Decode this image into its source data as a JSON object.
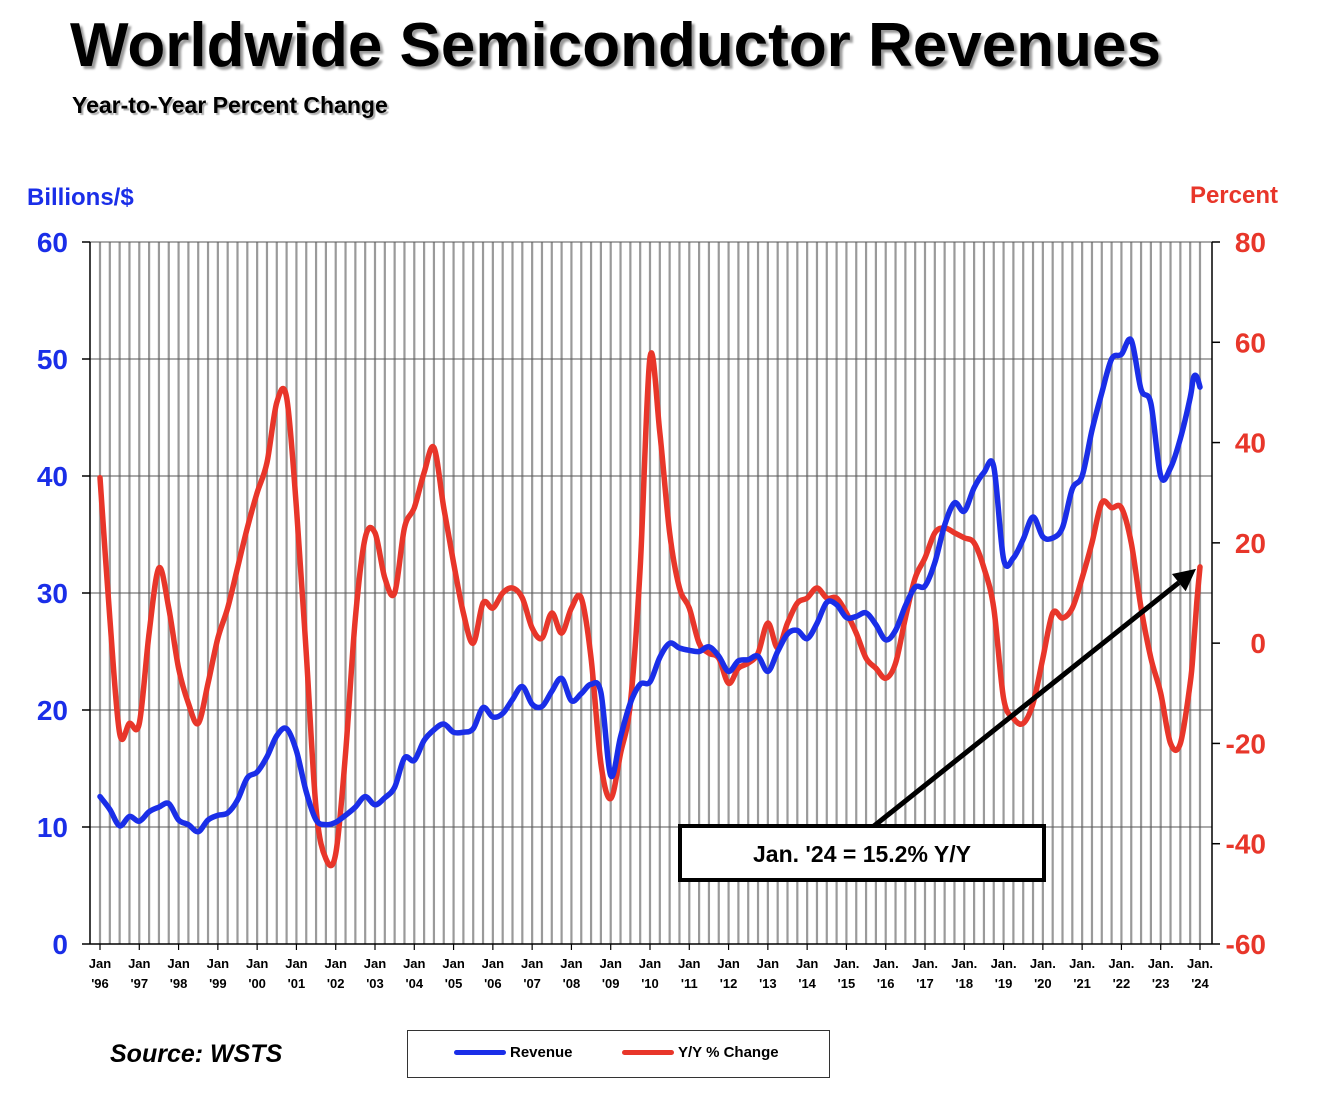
{
  "title": "Worldwide Semiconductor Revenues",
  "subtitle": "Year-to-Year Percent Change",
  "source": "Source: WSTS",
  "colors": {
    "revenue": "#1a2ee8",
    "yoy": "#e8362a",
    "grid": "#9a9a9a",
    "axis": "#000000"
  },
  "legend": {
    "revenue": "Revenue",
    "yoy": "Y/Y % Change"
  },
  "chart_data": {
    "type": "line",
    "ylabel_left": "Billions/$",
    "ylabel_right": "Percent",
    "ylim_left": [
      0,
      60
    ],
    "ylim_right": [
      -60,
      80
    ],
    "yticks_left": [
      0,
      10,
      20,
      30,
      40,
      50,
      60
    ],
    "yticks_right": [
      -60,
      -40,
      -20,
      0,
      20,
      40,
      60,
      80
    ],
    "grid": "vertical monthly",
    "legend_position": "bottom",
    "x_range": [
      "1996-01",
      "2024-01"
    ],
    "x_tick_labels": [
      [
        "Jan",
        "'96"
      ],
      [
        "Jan",
        "'97"
      ],
      [
        "Jan",
        "'98"
      ],
      [
        "Jan",
        "'99"
      ],
      [
        "Jan",
        "'00"
      ],
      [
        "Jan",
        "'01"
      ],
      [
        "Jan",
        "'02"
      ],
      [
        "Jan",
        "'03"
      ],
      [
        "Jan",
        "'04"
      ],
      [
        "Jan",
        "'05"
      ],
      [
        "Jan",
        "'06"
      ],
      [
        "Jan",
        "'07"
      ],
      [
        "Jan",
        "'08"
      ],
      [
        "Jan",
        "'09"
      ],
      [
        "Jan",
        "'10"
      ],
      [
        "Jan",
        "'11"
      ],
      [
        "Jan",
        "'12"
      ],
      [
        "Jan",
        "'13"
      ],
      [
        "Jan",
        "'14"
      ],
      [
        "Jan.",
        "'15"
      ],
      [
        "Jan.",
        "'16"
      ],
      [
        "Jan.",
        "'17"
      ],
      [
        "Jan.",
        "'18"
      ],
      [
        "Jan.",
        "'19"
      ],
      [
        "Jan.",
        "'20"
      ],
      [
        "Jan.",
        "'21"
      ],
      [
        "Jan.",
        "'22"
      ],
      [
        "Jan.",
        "'23"
      ],
      [
        "Jan.",
        "'24"
      ]
    ],
    "annotation": {
      "text": "Jan. '24 = 15.2% Y/Y",
      "points_to": [
        "2024-01",
        15.2
      ]
    },
    "series": [
      {
        "name": "Revenue",
        "axis": "left",
        "points": [
          [
            "1996-01",
            12.6
          ],
          [
            "1996-04",
            11.5
          ],
          [
            "1996-07",
            10.1
          ],
          [
            "1996-10",
            10.9
          ],
          [
            "1997-01",
            10.5
          ],
          [
            "1997-04",
            11.3
          ],
          [
            "1997-07",
            11.7
          ],
          [
            "1997-10",
            12.0
          ],
          [
            "1998-01",
            10.6
          ],
          [
            "1998-04",
            10.2
          ],
          [
            "1998-07",
            9.6
          ],
          [
            "1998-10",
            10.6
          ],
          [
            "1999-01",
            11.0
          ],
          [
            "1999-04",
            11.2
          ],
          [
            "1999-07",
            12.3
          ],
          [
            "1999-10",
            14.2
          ],
          [
            "2000-01",
            14.7
          ],
          [
            "2000-04",
            16.0
          ],
          [
            "2000-07",
            17.8
          ],
          [
            "2000-10",
            18.4
          ],
          [
            "2001-01",
            16.5
          ],
          [
            "2001-04",
            13.0
          ],
          [
            "2001-07",
            10.6
          ],
          [
            "2001-10",
            10.2
          ],
          [
            "2002-01",
            10.4
          ],
          [
            "2002-04",
            11.0
          ],
          [
            "2002-07",
            11.7
          ],
          [
            "2002-10",
            12.6
          ],
          [
            "2003-01",
            11.9
          ],
          [
            "2003-04",
            12.5
          ],
          [
            "2003-07",
            13.4
          ],
          [
            "2003-10",
            15.9
          ],
          [
            "2004-01",
            15.7
          ],
          [
            "2004-04",
            17.4
          ],
          [
            "2004-07",
            18.3
          ],
          [
            "2004-10",
            18.8
          ],
          [
            "2005-01",
            18.1
          ],
          [
            "2005-04",
            18.1
          ],
          [
            "2005-07",
            18.4
          ],
          [
            "2005-10",
            20.2
          ],
          [
            "2006-01",
            19.4
          ],
          [
            "2006-04",
            19.7
          ],
          [
            "2006-07",
            20.9
          ],
          [
            "2006-10",
            22.0
          ],
          [
            "2007-01",
            20.5
          ],
          [
            "2007-04",
            20.3
          ],
          [
            "2007-07",
            21.6
          ],
          [
            "2007-10",
            22.7
          ],
          [
            "2008-01",
            20.8
          ],
          [
            "2008-04",
            21.4
          ],
          [
            "2008-07",
            22.2
          ],
          [
            "2008-10",
            21.5
          ],
          [
            "2009-01",
            14.4
          ],
          [
            "2009-04",
            17.7
          ],
          [
            "2009-07",
            20.6
          ],
          [
            "2009-10",
            22.2
          ],
          [
            "2010-01",
            22.4
          ],
          [
            "2010-04",
            24.5
          ],
          [
            "2010-07",
            25.7
          ],
          [
            "2010-10",
            25.3
          ],
          [
            "2011-01",
            25.1
          ],
          [
            "2011-04",
            25.0
          ],
          [
            "2011-07",
            25.4
          ],
          [
            "2011-10",
            24.6
          ],
          [
            "2012-01",
            23.3
          ],
          [
            "2012-04",
            24.2
          ],
          [
            "2012-07",
            24.3
          ],
          [
            "2012-10",
            24.6
          ],
          [
            "2013-01",
            23.3
          ],
          [
            "2013-04",
            25.0
          ],
          [
            "2013-07",
            26.5
          ],
          [
            "2013-10",
            26.8
          ],
          [
            "2014-01",
            26.1
          ],
          [
            "2014-04",
            27.4
          ],
          [
            "2014-07",
            29.2
          ],
          [
            "2014-10",
            29.0
          ],
          [
            "2015-01",
            27.9
          ],
          [
            "2015-04",
            28.0
          ],
          [
            "2015-07",
            28.3
          ],
          [
            "2015-10",
            27.3
          ],
          [
            "2016-01",
            26.0
          ],
          [
            "2016-04",
            26.8
          ],
          [
            "2016-07",
            28.9
          ],
          [
            "2016-10",
            30.5
          ],
          [
            "2017-01",
            30.6
          ],
          [
            "2017-04",
            32.6
          ],
          [
            "2017-07",
            35.8
          ],
          [
            "2017-10",
            37.7
          ],
          [
            "2018-01",
            37.0
          ],
          [
            "2018-04",
            39.0
          ],
          [
            "2018-07",
            40.3
          ],
          [
            "2018-10",
            40.8
          ],
          [
            "2019-01",
            32.9
          ],
          [
            "2019-04",
            33.0
          ],
          [
            "2019-07",
            34.6
          ],
          [
            "2019-10",
            36.5
          ],
          [
            "2020-01",
            34.8
          ],
          [
            "2020-04",
            34.7
          ],
          [
            "2020-07",
            35.6
          ],
          [
            "2020-10",
            38.9
          ],
          [
            "2021-01",
            40.0
          ],
          [
            "2021-04",
            43.9
          ],
          [
            "2021-07",
            47.1
          ],
          [
            "2021-10",
            50.0
          ],
          [
            "2022-01",
            50.4
          ],
          [
            "2022-04",
            51.6
          ],
          [
            "2022-07",
            47.4
          ],
          [
            "2022-10",
            46.2
          ],
          [
            "2023-01",
            40.0
          ],
          [
            "2023-04",
            40.7
          ],
          [
            "2023-07",
            43.2
          ],
          [
            "2023-10",
            46.7
          ],
          [
            "2023-11",
            48.4
          ],
          [
            "2023-12",
            48.5
          ],
          [
            "2024-01",
            47.6
          ]
        ]
      },
      {
        "name": "Y/Y % Change",
        "axis": "right",
        "points": [
          [
            "1996-01",
            33.0
          ],
          [
            "1996-04",
            5.0
          ],
          [
            "1996-07",
            -18.0
          ],
          [
            "1996-10",
            -16.0
          ],
          [
            "1997-01",
            -16.0
          ],
          [
            "1997-04",
            2.0
          ],
          [
            "1997-07",
            15.0
          ],
          [
            "1997-10",
            7.0
          ],
          [
            "1998-01",
            -5.0
          ],
          [
            "1998-04",
            -12.0
          ],
          [
            "1998-07",
            -16.0
          ],
          [
            "1998-10",
            -8.0
          ],
          [
            "1999-01",
            1.0
          ],
          [
            "1999-04",
            7.0
          ],
          [
            "1999-07",
            15.0
          ],
          [
            "1999-10",
            23.0
          ],
          [
            "2000-01",
            30.0
          ],
          [
            "2000-04",
            36.0
          ],
          [
            "2000-07",
            48.0
          ],
          [
            "2000-10",
            49.0
          ],
          [
            "2001-01",
            27.0
          ],
          [
            "2001-04",
            -2.0
          ],
          [
            "2001-07",
            -33.0
          ],
          [
            "2001-10",
            -43.0
          ],
          [
            "2002-01",
            -42.0
          ],
          [
            "2002-04",
            -22.0
          ],
          [
            "2002-07",
            5.0
          ],
          [
            "2002-10",
            21.0
          ],
          [
            "2003-01",
            22.0
          ],
          [
            "2003-04",
            13.0
          ],
          [
            "2003-07",
            10.0
          ],
          [
            "2003-10",
            23.0
          ],
          [
            "2004-01",
            27.0
          ],
          [
            "2004-04",
            34.0
          ],
          [
            "2004-07",
            39.0
          ],
          [
            "2004-10",
            27.0
          ],
          [
            "2005-01",
            16.0
          ],
          [
            "2005-04",
            6.0
          ],
          [
            "2005-07",
            0.0
          ],
          [
            "2005-10",
            8.0
          ],
          [
            "2006-01",
            7.0
          ],
          [
            "2006-04",
            10.0
          ],
          [
            "2006-07",
            11.0
          ],
          [
            "2006-10",
            9.0
          ],
          [
            "2007-01",
            3.0
          ],
          [
            "2007-04",
            1.0
          ],
          [
            "2007-07",
            6.0
          ],
          [
            "2007-10",
            2.0
          ],
          [
            "2008-01",
            7.0
          ],
          [
            "2008-04",
            9.0
          ],
          [
            "2008-07",
            -3.0
          ],
          [
            "2008-10",
            -24.0
          ],
          [
            "2009-01",
            -31.0
          ],
          [
            "2009-04",
            -22.0
          ],
          [
            "2009-07",
            -12.0
          ],
          [
            "2009-10",
            15.0
          ],
          [
            "2010-01",
            57.0
          ],
          [
            "2010-04",
            42.0
          ],
          [
            "2010-07",
            22.0
          ],
          [
            "2010-10",
            11.0
          ],
          [
            "2011-01",
            7.0
          ],
          [
            "2011-04",
            0.0
          ],
          [
            "2011-07",
            -2.0
          ],
          [
            "2011-10",
            -3.0
          ],
          [
            "2012-01",
            -8.0
          ],
          [
            "2012-04",
            -5.0
          ],
          [
            "2012-07",
            -4.0
          ],
          [
            "2012-10",
            -2.0
          ],
          [
            "2013-01",
            4.0
          ],
          [
            "2013-04",
            -1.0
          ],
          [
            "2013-07",
            4.0
          ],
          [
            "2013-10",
            8.0
          ],
          [
            "2014-01",
            9.0
          ],
          [
            "2014-04",
            11.0
          ],
          [
            "2014-07",
            9.0
          ],
          [
            "2014-10",
            9.0
          ],
          [
            "2015-01",
            6.0
          ],
          [
            "2015-04",
            2.0
          ],
          [
            "2015-07",
            -3.0
          ],
          [
            "2015-10",
            -5.0
          ],
          [
            "2016-01",
            -7.0
          ],
          [
            "2016-04",
            -4.0
          ],
          [
            "2016-07",
            5.0
          ],
          [
            "2016-10",
            13.0
          ],
          [
            "2017-01",
            17.0
          ],
          [
            "2017-04",
            22.0
          ],
          [
            "2017-07",
            23.0
          ],
          [
            "2017-10",
            22.0
          ],
          [
            "2018-01",
            21.0
          ],
          [
            "2018-04",
            20.0
          ],
          [
            "2018-07",
            15.0
          ],
          [
            "2018-10",
            7.0
          ],
          [
            "2019-01",
            -11.0
          ],
          [
            "2019-04",
            -15.0
          ],
          [
            "2019-07",
            -16.0
          ],
          [
            "2019-10",
            -12.0
          ],
          [
            "2020-01",
            -3.0
          ],
          [
            "2020-04",
            6.0
          ],
          [
            "2020-07",
            5.0
          ],
          [
            "2020-10",
            7.0
          ],
          [
            "2021-01",
            13.0
          ],
          [
            "2021-04",
            20.0
          ],
          [
            "2021-07",
            28.0
          ],
          [
            "2021-10",
            27.0
          ],
          [
            "2022-01",
            27.0
          ],
          [
            "2022-04",
            20.0
          ],
          [
            "2022-07",
            7.0
          ],
          [
            "2022-10",
            -3.0
          ],
          [
            "2023-01",
            -10.0
          ],
          [
            "2023-04",
            -20.0
          ],
          [
            "2023-07",
            -20.0
          ],
          [
            "2023-10",
            -8.0
          ],
          [
            "2023-11",
            -1.0
          ],
          [
            "2023-12",
            8.0
          ],
          [
            "2024-01",
            15.2
          ]
        ]
      }
    ]
  }
}
